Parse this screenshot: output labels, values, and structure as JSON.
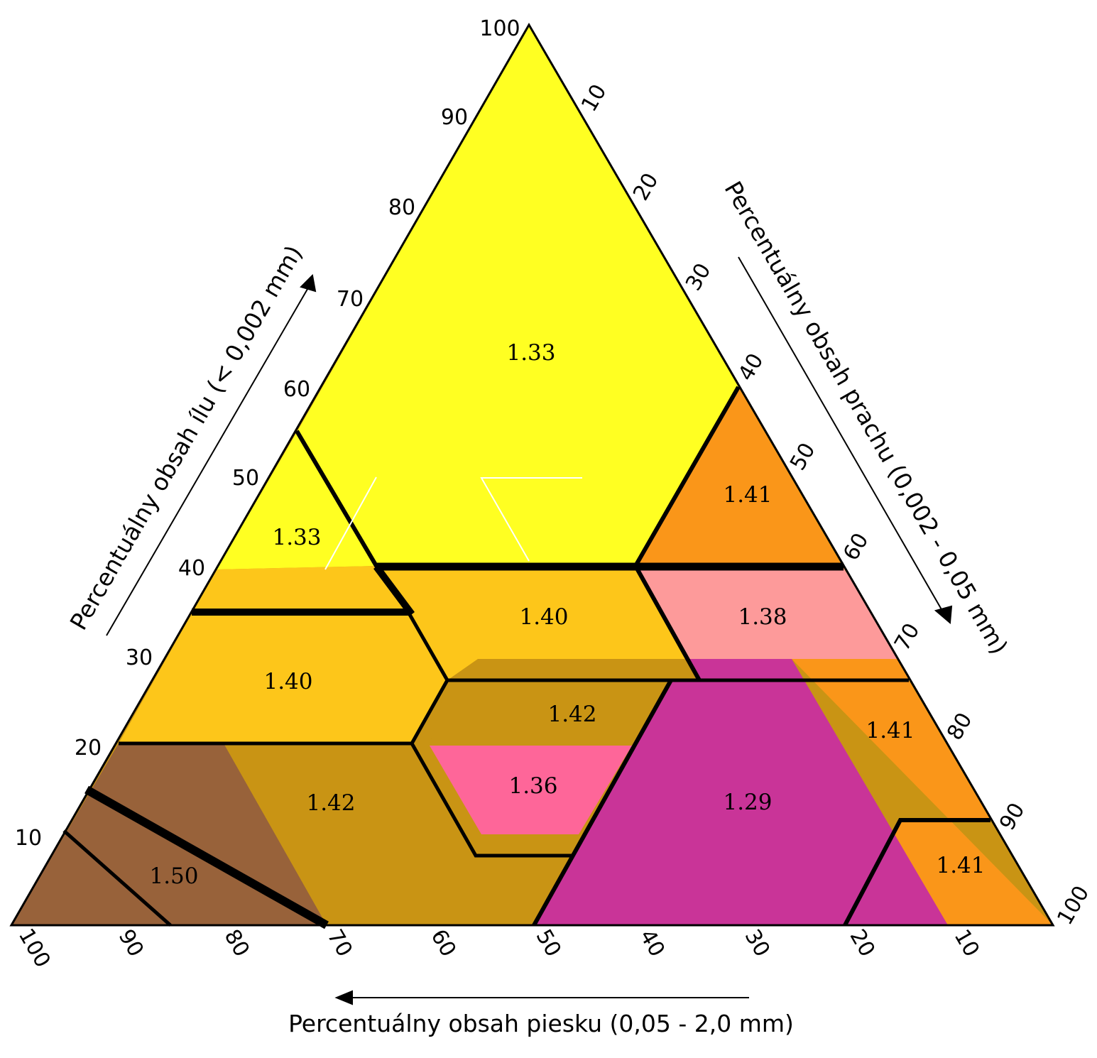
{
  "diagram": {
    "axes": {
      "clay": {
        "title": "Percentuálny obsah ílu (< 0,002 mm)",
        "ticks": [
          "10",
          "20",
          "30",
          "40",
          "50",
          "60",
          "70",
          "80",
          "90",
          "100"
        ]
      },
      "silt": {
        "title": "Percentuálny obsah prachu (0,002 - 0,05 mm)",
        "ticks": [
          "10",
          "20",
          "30",
          "40",
          "50",
          "60",
          "70",
          "80",
          "90",
          "100"
        ]
      },
      "sand": {
        "title": "Percentuálny obsah piesku (0,05 - 2,0 mm)",
        "ticks": [
          "100",
          "90",
          "80",
          "70",
          "60",
          "50",
          "40",
          "30",
          "20",
          "10"
        ]
      }
    },
    "regions": [
      {
        "label": "1.33",
        "color": "#ffff22"
      },
      {
        "label": "1.33",
        "color": "#ffff22"
      },
      {
        "label": "1.41",
        "color": "#fa9619"
      },
      {
        "label": "1.40",
        "color": "#fdc61a"
      },
      {
        "label": "1.38",
        "color": "#fd9a9a"
      },
      {
        "label": "1.40",
        "color": "#fdc61a"
      },
      {
        "label": "1.42",
        "color": "#c99414"
      },
      {
        "label": "1.41",
        "color": "#fa9619"
      },
      {
        "label": "1.36",
        "color": "#fe6699"
      },
      {
        "label": "1.29",
        "color": "#c93498"
      },
      {
        "label": "1.42",
        "color": "#c99414"
      },
      {
        "label": "1.50",
        "color": "#98623a"
      },
      {
        "label": "1.41",
        "color": "#fa9619"
      }
    ]
  }
}
